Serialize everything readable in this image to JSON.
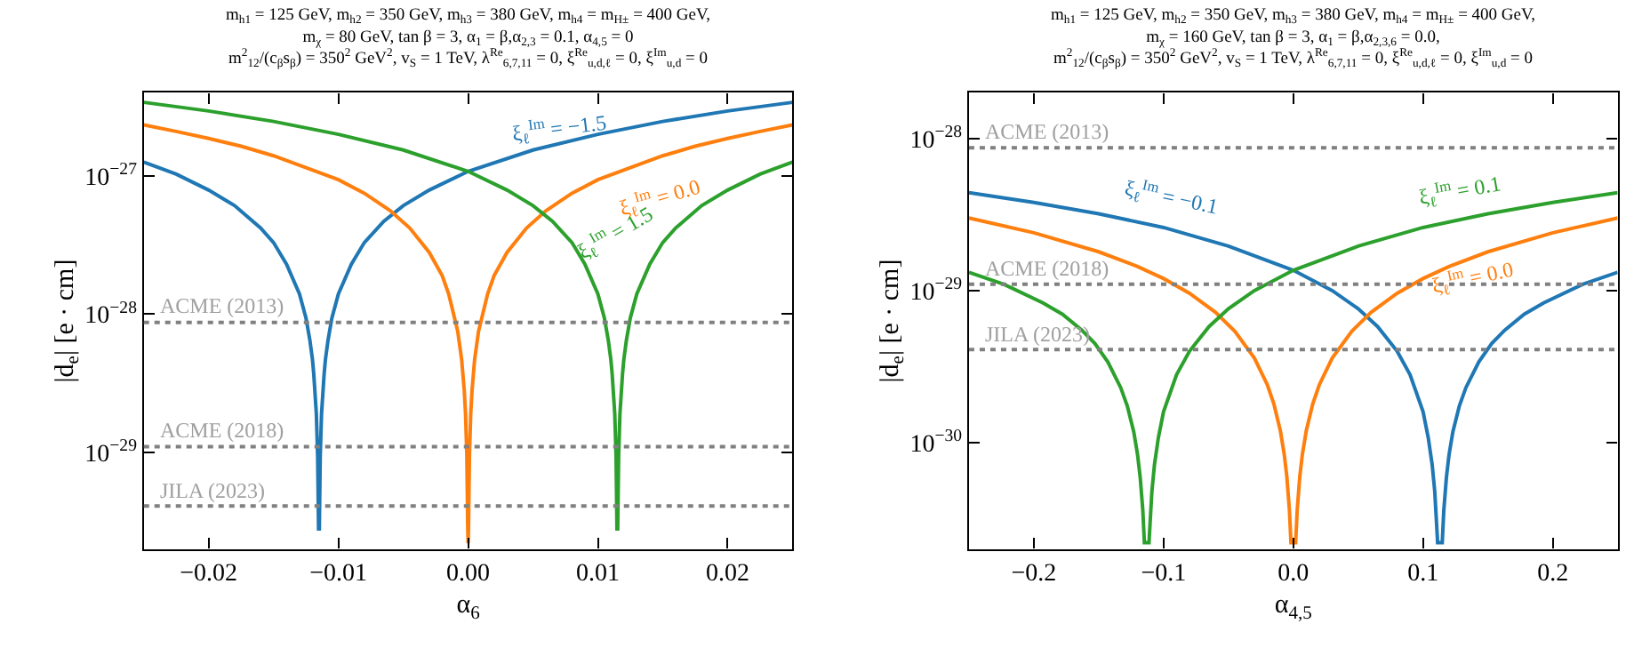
{
  "chart_data": [
    {
      "type": "line",
      "title": "m$_{h1}$ = 125 GeV, m$_{h2}$ = 350 GeV, m$_{h3}$ = 380 GeV, m$_{h4}$ = m$_{H±}$ = 400 GeV,\nm$_{χ}$ = 80 GeV, tan β = 3, α$_{1}$ = β,α$_{2,3}$ = 0.1, α$_{4,5}$ = 0\nm$^{2}$$_{12}$/(c$_{β}$s$_{β}$) = 350$^{2}$ GeV$^{2}$, v$_{S}$ = 1 TeV, λ$^{Re}$$_{6,7,11}$ = 0, ξ$^{Re}$$_{u,d,ℓ}$ = 0, ξ$^{Im}$$_{u,d}$ = 0",
      "xlabel": "α$_{6}$",
      "ylabel": "|d$_{e}$| [e · cm]",
      "log": "y",
      "marker": "none",
      "line_style": "solid",
      "xlim": [
        -0.025,
        0.025
      ],
      "xticks": [
        {
          "value": -0.02,
          "label": "−0.02"
        },
        {
          "value": -0.01,
          "label": "−0.01"
        },
        {
          "value": 0,
          "label": "0.00"
        },
        {
          "value": 0.01,
          "label": "0.01"
        },
        {
          "value": 0.02,
          "label": "0.02"
        }
      ],
      "ylim": [
        2e-30,
        4e-27
      ],
      "yticks": [
        {
          "value": 1e-29,
          "label": "10$^{−29}$"
        },
        {
          "value": 1e-28,
          "label": "10$^{−28}$"
        },
        {
          "value": 1e-27,
          "label": "10$^{−27}$"
        }
      ],
      "series": [
        {
          "color": "#1f77b4",
          "x": [
            -0.025,
            -0.0225,
            -0.02,
            -0.018,
            -0.016,
            -0.015,
            -0.014,
            -0.013,
            -0.0125,
            -0.0122,
            -0.012,
            -0.0119,
            -0.0117,
            -0.0116,
            -0.01153,
            -0.01147,
            -0.0114,
            -0.0113,
            -0.0111,
            -0.011,
            -0.0108,
            -0.0105,
            -0.01,
            -0.009,
            -0.008,
            -0.0065,
            -0.005,
            -0.003,
            0,
            0.005,
            0.01,
            0.015,
            0.02,
            0.025
          ],
          "values": [
            1.26e-27,
            1.03e-27,
            7.9e-28,
            6.1e-28,
            4.2e-28,
            3.3e-28,
            2.3e-28,
            1.4e-28,
            9.4e-29,
            6.5e-29,
            4.7e-29,
            3.7e-29,
            1.9e-29,
            9.4e-30,
            2.8e-30,
            2.8e-30,
            9.4e-30,
            1.9e-29,
            3.7e-29,
            4.7e-29,
            6.5e-29,
            9.4e-29,
            1.4e-28,
            2.3e-28,
            3.3e-28,
            4.7e-28,
            6.1e-28,
            7.9e-28,
            1.08e-27,
            1.54e-27,
            2e-27,
            2.48e-27,
            2.95e-27,
            3.41e-27
          ]
        },
        {
          "color": "#ff7f0e",
          "x": [
            -0.025,
            -0.0225,
            -0.02,
            -0.0175,
            -0.015,
            -0.01,
            -0.008,
            -0.006,
            -0.0045,
            -0.003,
            -0.002,
            -0.0015,
            -0.0008,
            -0.0005,
            -0.0003,
            -0.0002,
            -0.0001,
            -3e-05,
            0,
            3e-05,
            0.0001,
            0.0002,
            0.0003,
            0.0005,
            0.0008,
            0.0015,
            0.002,
            0.003,
            0.0045,
            0.006,
            0.008,
            0.01,
            0.015,
            0.0175,
            0.02,
            0.0225,
            0.025
          ],
          "values": [
            2.34e-27,
            2.1e-27,
            1.87e-27,
            1.64e-27,
            1.4e-27,
            9.4e-28,
            7.5e-28,
            5.6e-28,
            4.2e-28,
            2.8e-28,
            1.9e-28,
            1.4e-28,
            7.5e-29,
            4.7e-29,
            2.8e-29,
            1.9e-29,
            9.4e-30,
            2.8e-30,
            2.2e-30,
            2.8e-30,
            9.4e-30,
            1.9e-29,
            2.8e-29,
            4.7e-29,
            7.5e-29,
            1.4e-28,
            1.9e-28,
            2.8e-28,
            4.2e-28,
            5.6e-28,
            7.5e-28,
            9.4e-28,
            1.4e-27,
            1.64e-27,
            1.87e-27,
            2.1e-27,
            2.34e-27
          ]
        },
        {
          "color": "#2ca02c",
          "x": [
            -0.025,
            -0.02,
            -0.015,
            -0.01,
            -0.005,
            0,
            0.003,
            0.005,
            0.0065,
            0.008,
            0.009,
            0.01,
            0.0105,
            0.0108,
            0.011,
            0.0111,
            0.0113,
            0.0114,
            0.01147,
            0.01153,
            0.0116,
            0.0117,
            0.0119,
            0.012,
            0.0122,
            0.0125,
            0.013,
            0.014,
            0.015,
            0.016,
            0.018,
            0.02,
            0.0225,
            0.025
          ],
          "values": [
            3.41e-27,
            2.95e-27,
            2.48e-27,
            2e-27,
            1.54e-27,
            1.08e-27,
            7.9e-28,
            6.1e-28,
            4.7e-28,
            3.3e-28,
            2.3e-28,
            1.4e-28,
            9.4e-29,
            6.5e-29,
            4.7e-29,
            3.7e-29,
            1.9e-29,
            9.4e-30,
            2.8e-30,
            2.8e-30,
            9.4e-30,
            1.9e-29,
            3.7e-29,
            4.7e-29,
            6.5e-29,
            9.4e-29,
            1.4e-28,
            2.3e-28,
            3.3e-28,
            4.2e-28,
            6.1e-28,
            7.9e-28,
            1.03e-27,
            1.26e-27
          ]
        }
      ],
      "ref_lines": [
        {
          "axis": "y",
          "value": 8.7e-29,
          "label": "ACME (2013)",
          "color": "#808080",
          "line_style": "dotted"
        },
        {
          "axis": "y",
          "value": 1.1e-29,
          "label": "ACME (2018)",
          "color": "#808080",
          "line_style": "dotted"
        },
        {
          "axis": "y",
          "value": 4.1e-30,
          "label": "JILA (2023)",
          "color": "#808080",
          "line_style": "dotted"
        }
      ],
      "annotations": [
        "ξ$_{ℓ}$$^{Im}$ = −1.5",
        "ξ$_{ℓ}$$^{Im}$ = 0.0",
        "ξ$_{ℓ}$$^{Im}$ = 1.5"
      ]
    },
    {
      "type": "line",
      "title": "m$_{h1}$ = 125 GeV, m$_{h2}$ = 350 GeV, m$_{h3}$ = 380 GeV, m$_{h4}$ = m$_{H±}$ = 400 GeV,\nm$_{χ}$ = 160 GeV, tan β = 3, α$_{1}$ = β,α$_{2,3,6}$ = 0.0,\nm$^{2}$$_{12}$/(c$_{β}$s$_{β}$) = 350$^{2}$ GeV$^{2}$, v$_{S}$ = 1 TeV, λ$^{Re}$$_{6,7,11}$ = 0, ξ$^{Re}$$_{u,d,ℓ}$ = 0, ξ$^{Im}$$_{u,d}$ = 0",
      "xlabel": "α$_{4,5}$",
      "ylabel": "|d$_{e}$| [e · cm]",
      "log": "y",
      "marker": "none",
      "line_style": "solid",
      "xlim": [
        -0.25,
        0.25
      ],
      "xticks": [
        {
          "value": -0.2,
          "label": "−0.2"
        },
        {
          "value": -0.1,
          "label": "−0.1"
        },
        {
          "value": 0,
          "label": "0.0"
        },
        {
          "value": 0.1,
          "label": "0.1"
        },
        {
          "value": 0.2,
          "label": "0.2"
        }
      ],
      "ylim": [
        2e-31,
        2e-28
      ],
      "yticks": [
        {
          "value": 1e-30,
          "label": "10$^{−30}$"
        },
        {
          "value": 1e-29,
          "label": "10$^{−29}$"
        },
        {
          "value": 1e-28,
          "label": "10$^{−28}$"
        }
      ],
      "series": [
        {
          "color": "#1f77b4",
          "x": [
            -0.25,
            -0.2,
            -0.15,
            -0.1,
            -0.05,
            0,
            0.03,
            0.05,
            0.065,
            0.08,
            0.09,
            0.1,
            0.104,
            0.107,
            0.109,
            0.111,
            0.1112,
            0.1148,
            0.116,
            0.118,
            0.12,
            0.123,
            0.128,
            0.133,
            0.143,
            0.153,
            0.163,
            0.178,
            0.193,
            0.223,
            0.25
          ],
          "values": [
            4.4e-29,
            3.8e-29,
            3.2e-29,
            2.6e-29,
            1.96e-29,
            1.36e-29,
            1e-29,
            7.6e-30,
            5.8e-30,
            4e-30,
            2.8e-30,
            1.6e-30,
            1.08e-30,
            7.2e-31,
            4.8e-31,
            2.4e-31,
            2.2e-31,
            2.2e-31,
            3.6e-31,
            5.9e-31,
            8.3e-31,
            1.18e-30,
            1.75e-30,
            2.3e-30,
            3.4e-30,
            4.5e-30,
            5.5e-30,
            7e-30,
            8.3e-30,
            1.1e-29,
            1.32e-29
          ]
        },
        {
          "color": "#ff7f0e",
          "x": [
            -0.25,
            -0.2,
            -0.15,
            -0.12,
            -0.1,
            -0.08,
            -0.06,
            -0.045,
            -0.03,
            -0.02,
            -0.015,
            -0.01,
            -0.007,
            -0.005,
            -0.003,
            -0.0018,
            0.0018,
            0.003,
            0.005,
            0.007,
            0.01,
            0.015,
            0.02,
            0.03,
            0.045,
            0.06,
            0.08,
            0.1,
            0.12,
            0.15,
            0.2,
            0.25
          ],
          "values": [
            3e-29,
            2.4e-29,
            1.8e-29,
            1.44e-29,
            1.2e-29,
            9.6e-30,
            7.2e-30,
            5.4e-30,
            3.6e-30,
            2.4e-30,
            1.8e-30,
            1.2e-30,
            8.4e-31,
            6e-31,
            3.6e-31,
            2.2e-31,
            2.2e-31,
            3.6e-31,
            6e-31,
            8.4e-31,
            1.2e-30,
            1.8e-30,
            2.4e-30,
            3.6e-30,
            5.4e-30,
            7.2e-30,
            9.6e-30,
            1.2e-29,
            1.44e-29,
            1.8e-29,
            2.4e-29,
            3e-29
          ]
        },
        {
          "color": "#2ca02c",
          "x": [
            -0.25,
            -0.223,
            -0.193,
            -0.178,
            -0.163,
            -0.153,
            -0.143,
            -0.133,
            -0.128,
            -0.123,
            -0.12,
            -0.118,
            -0.116,
            -0.1148,
            -0.1112,
            -0.111,
            -0.109,
            -0.107,
            -0.104,
            -0.1,
            -0.09,
            -0.08,
            -0.065,
            -0.05,
            -0.03,
            0,
            0.05,
            0.1,
            0.15,
            0.2,
            0.25
          ],
          "values": [
            1.32e-29,
            1.1e-29,
            8.3e-30,
            7e-30,
            5.5e-30,
            4.5e-30,
            3.4e-30,
            2.3e-30,
            1.75e-30,
            1.18e-30,
            8.3e-31,
            5.9e-31,
            3.6e-31,
            2.2e-31,
            2.2e-31,
            2.4e-31,
            4.8e-31,
            7.2e-31,
            1.08e-30,
            1.6e-30,
            2.8e-30,
            4e-30,
            5.8e-30,
            7.6e-30,
            1e-29,
            1.36e-29,
            1.96e-29,
            2.6e-29,
            3.2e-29,
            3.8e-29,
            4.4e-29
          ]
        }
      ],
      "ref_lines": [
        {
          "axis": "y",
          "value": 8.7e-29,
          "label": "ACME (2013)",
          "color": "#808080",
          "line_style": "dotted"
        },
        {
          "axis": "y",
          "value": 1.1e-29,
          "label": "ACME (2018)",
          "color": "#808080",
          "line_style": "dotted"
        },
        {
          "axis": "y",
          "value": 4.1e-30,
          "label": "JILA (2023)",
          "color": "#808080",
          "line_style": "dotted"
        }
      ],
      "annotations": [
        "ξ$_{ℓ}$$^{Im}$ = −0.1",
        "ξ$_{ℓ}$$^{Im}$ = 0.0",
        "ξ$_{ℓ}$$^{Im}$ = 0.1"
      ]
    }
  ]
}
